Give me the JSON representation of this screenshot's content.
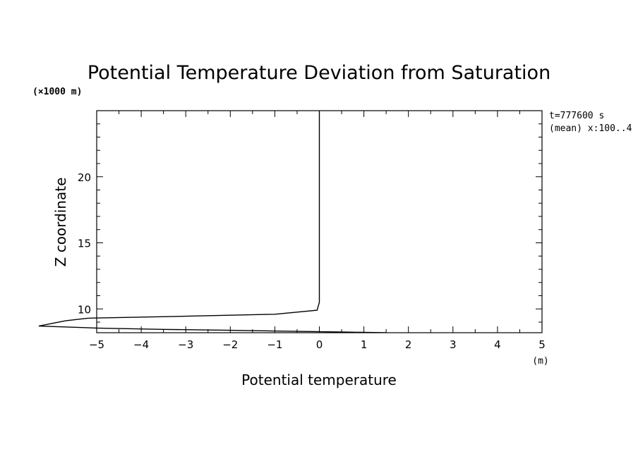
{
  "chart_data": {
    "type": "line",
    "title": "Potential Temperature Deviation from Saturation",
    "xlabel": "Potential temperature",
    "xunit": "(m)",
    "ylabel": "Z coordinate",
    "yunit": "(×1000 m)",
    "annotations": [
      "t=777600 s",
      "(mean) x:100..4"
    ],
    "xlim": [
      -5,
      5
    ],
    "ylim": [
      8.2,
      25
    ],
    "x_ticks": [
      -5,
      -4,
      -3,
      -2,
      -1,
      0,
      1,
      2,
      3,
      4,
      5
    ],
    "x_tick_labels": [
      "−5",
      "−4",
      "−3",
      "−2",
      "−1",
      "0",
      "1",
      "2",
      "3",
      "4",
      "5"
    ],
    "y_ticks": [
      10,
      15,
      20
    ],
    "y_tick_labels": [
      "10",
      "15",
      "20"
    ],
    "grid": false,
    "series": [
      {
        "x": [
          1.5,
          0.6,
          -0.5,
          -2.0,
          -3.5,
          -5.0,
          -6.3,
          -5.7,
          -5.2,
          -3.0,
          -1.0,
          -0.05,
          0.0,
          0.0
        ],
        "y": [
          8.2,
          8.25,
          8.3,
          8.38,
          8.45,
          8.55,
          8.7,
          9.1,
          9.3,
          9.45,
          9.6,
          9.9,
          10.5,
          25
        ]
      }
    ]
  }
}
